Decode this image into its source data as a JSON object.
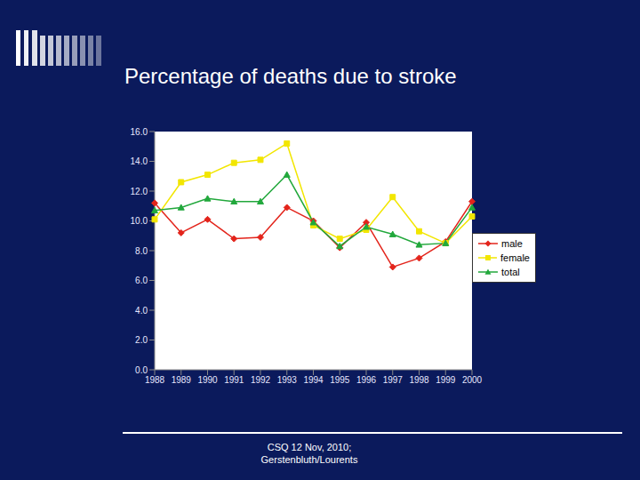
{
  "chart_data": {
    "type": "line",
    "title": "Percentage of deaths due to stroke",
    "categories": [
      "1988",
      "1989",
      "1990",
      "1991",
      "1992",
      "1993",
      "1994",
      "1995",
      "1996",
      "1997",
      "1998",
      "1999",
      "2000"
    ],
    "series": [
      {
        "name": "male",
        "color": "#e3241b",
        "marker": "diamond",
        "values": [
          11.2,
          9.2,
          10.1,
          8.8,
          8.9,
          10.9,
          10.0,
          8.2,
          9.9,
          6.9,
          7.5,
          8.6,
          11.3
        ]
      },
      {
        "name": "female",
        "color": "#f2e600",
        "marker": "square",
        "values": [
          10.1,
          12.6,
          13.1,
          13.9,
          14.1,
          15.2,
          9.7,
          8.8,
          9.4,
          11.6,
          9.3,
          8.5,
          10.3
        ]
      },
      {
        "name": "total",
        "color": "#22a83c",
        "marker": "triangle",
        "values": [
          10.7,
          10.9,
          11.5,
          11.3,
          11.3,
          13.1,
          9.9,
          8.3,
          9.6,
          9.1,
          8.4,
          8.5,
          10.9
        ]
      }
    ],
    "ylim": [
      0,
      16
    ],
    "yticks": [
      {
        "value": 0,
        "label": "0.0"
      },
      {
        "value": 2,
        "label": "2.0"
      },
      {
        "value": 4,
        "label": "4.0"
      },
      {
        "value": 6,
        "label": "6.0"
      },
      {
        "value": 8,
        "label": "8.0"
      },
      {
        "value": 10,
        "label": "10.0"
      },
      {
        "value": 12,
        "label": "12.0"
      },
      {
        "value": 14,
        "label": "14.0"
      },
      {
        "value": 16,
        "label": "16.0"
      }
    ],
    "grid": false,
    "legend": "right",
    "annotations": [
      "CSQ 12 Nov, 2010;",
      "Gerstenbluth/Lourents"
    ]
  }
}
